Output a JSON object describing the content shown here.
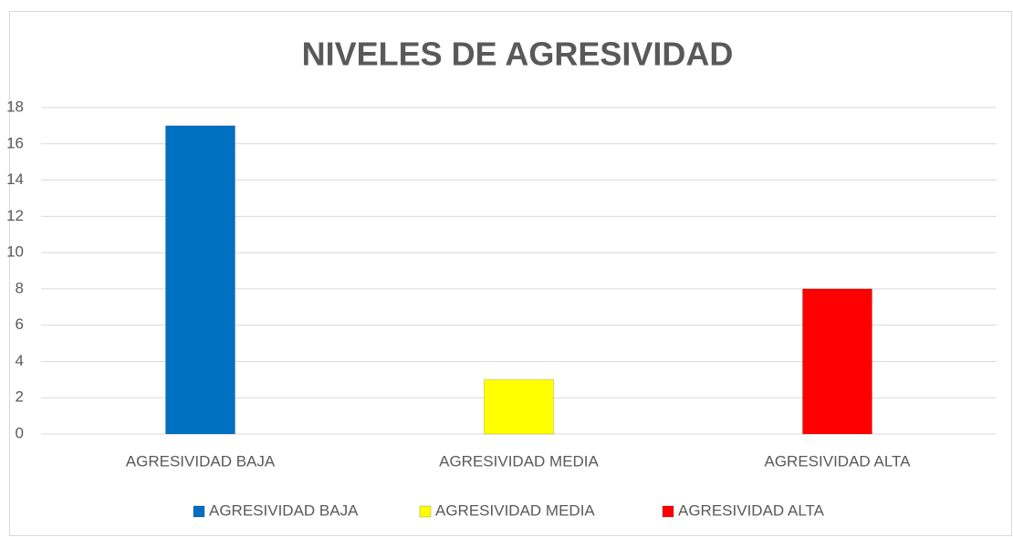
{
  "chart_data": {
    "type": "bar",
    "title": "NIVELES DE AGRESIVIDAD",
    "categories": [
      "AGRESIVIDAD BAJA",
      "AGRESIVIDAD MEDIA",
      "AGRESIVIDAD ALTA"
    ],
    "series": [
      {
        "name": "AGRESIVIDAD BAJA",
        "color": "#0070c0",
        "values": [
          17,
          null,
          null
        ]
      },
      {
        "name": "AGRESIVIDAD MEDIA",
        "color": "#ffff00",
        "values": [
          null,
          3,
          null
        ]
      },
      {
        "name": "AGRESIVIDAD ALTA",
        "color": "#ff0000",
        "values": [
          null,
          null,
          8
        ]
      }
    ],
    "ylim": [
      0,
      18
    ],
    "yticks": [
      0,
      2,
      4,
      6,
      8,
      10,
      12,
      14,
      16,
      18
    ],
    "grid": true,
    "legend": "bottom"
  }
}
